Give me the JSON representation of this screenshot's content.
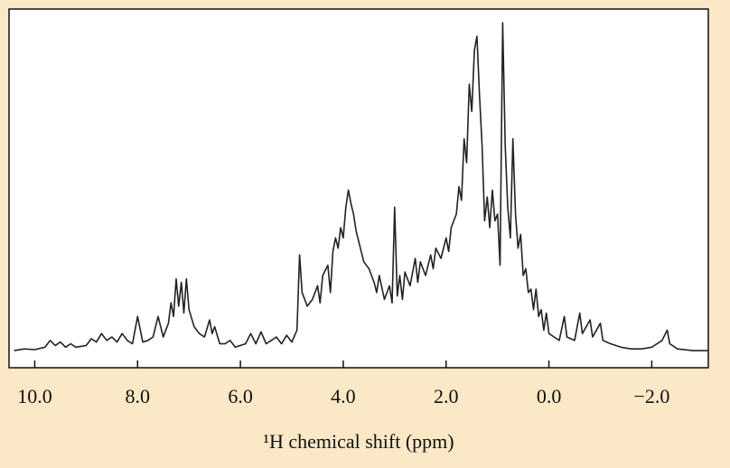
{
  "chart_data": {
    "type": "line",
    "xlabel": "¹H chemical shift (ppm)",
    "color": "#222222",
    "xlim": [
      10.5,
      -3.1
    ],
    "ylim": [
      -5,
      100
    ],
    "xticks": [
      {
        "value": 10,
        "label": "10.0"
      },
      {
        "value": 8,
        "label": "8.0"
      },
      {
        "value": 6,
        "label": "6.0"
      },
      {
        "value": 4,
        "label": "4.0"
      },
      {
        "value": 2,
        "label": "2.0"
      },
      {
        "value": 0,
        "label": "0.0"
      },
      {
        "value": -2,
        "label": "−2.0"
      }
    ],
    "x": [
      10.4,
      10.2,
      10.0,
      9.8,
      9.7,
      9.6,
      9.5,
      9.4,
      9.3,
      9.2,
      9.0,
      8.9,
      8.8,
      8.7,
      8.6,
      8.5,
      8.4,
      8.3,
      8.2,
      8.1,
      8.0,
      7.9,
      7.8,
      7.7,
      7.6,
      7.5,
      7.4,
      7.35,
      7.3,
      7.25,
      7.2,
      7.15,
      7.1,
      7.05,
      7.0,
      6.9,
      6.8,
      6.7,
      6.6,
      6.55,
      6.5,
      6.4,
      6.3,
      6.2,
      6.1,
      6.0,
      5.9,
      5.8,
      5.7,
      5.6,
      5.5,
      5.4,
      5.3,
      5.2,
      5.1,
      5.0,
      4.9,
      4.85,
      4.8,
      4.7,
      4.6,
      4.5,
      4.45,
      4.4,
      4.3,
      4.25,
      4.2,
      4.15,
      4.1,
      4.05,
      4.0,
      3.95,
      3.9,
      3.85,
      3.8,
      3.75,
      3.7,
      3.6,
      3.5,
      3.4,
      3.35,
      3.3,
      3.2,
      3.1,
      3.05,
      3.0,
      2.95,
      2.9,
      2.85,
      2.8,
      2.7,
      2.6,
      2.55,
      2.5,
      2.4,
      2.3,
      2.25,
      2.2,
      2.1,
      2.0,
      1.95,
      1.9,
      1.8,
      1.75,
      1.7,
      1.65,
      1.6,
      1.55,
      1.5,
      1.45,
      1.4,
      1.35,
      1.3,
      1.25,
      1.2,
      1.15,
      1.1,
      1.05,
      1.0,
      0.95,
      0.9,
      0.85,
      0.8,
      0.75,
      0.7,
      0.65,
      0.6,
      0.55,
      0.5,
      0.45,
      0.4,
      0.35,
      0.3,
      0.25,
      0.2,
      0.15,
      0.1,
      0.05,
      0.0,
      -0.1,
      -0.2,
      -0.3,
      -0.35,
      -0.5,
      -0.6,
      -0.65,
      -0.8,
      -0.85,
      -1.0,
      -1.05,
      -1.2,
      -1.4,
      -1.6,
      -1.8,
      -2.0,
      -2.2,
      -2.3,
      -2.35,
      -2.5,
      -2.8,
      -3.1
    ],
    "values": [
      0,
      0.5,
      0.3,
      1,
      3,
      1.5,
      2.5,
      1,
      2,
      1,
      1.5,
      3.5,
      2.5,
      5,
      3,
      4,
      2.5,
      5,
      3,
      2,
      10,
      2.5,
      3,
      4,
      10,
      4,
      8,
      14,
      10,
      21,
      13,
      20,
      11,
      21,
      12,
      7,
      5,
      4,
      9,
      5,
      7,
      2,
      2,
      3,
      1,
      1.5,
      2,
      5,
      2,
      5.5,
      2,
      3,
      4,
      2,
      4.5,
      2.5,
      6,
      28,
      17,
      13,
      15,
      19,
      14,
      22,
      25,
      17,
      29,
      33,
      30,
      36,
      33,
      42,
      47,
      43,
      40,
      35,
      32,
      26,
      24,
      20,
      17,
      22,
      15,
      19,
      14,
      42,
      16,
      22,
      15,
      23,
      19,
      27,
      20,
      26,
      22,
      28,
      24,
      30,
      27,
      33,
      29,
      36,
      40,
      48,
      44,
      62,
      55,
      78,
      70,
      88,
      92,
      75,
      60,
      38,
      45,
      36,
      47,
      38,
      40,
      25,
      96,
      60,
      42,
      33,
      62,
      40,
      30,
      34,
      22,
      24,
      17,
      18,
      12,
      18,
      10,
      12,
      6,
      11,
      5,
      4,
      3,
      10,
      4,
      3,
      11,
      5,
      9,
      4,
      8,
      3,
      2,
      1,
      0.5,
      0.5,
      1,
      3,
      6,
      2,
      0.5,
      0,
      0
    ]
  }
}
